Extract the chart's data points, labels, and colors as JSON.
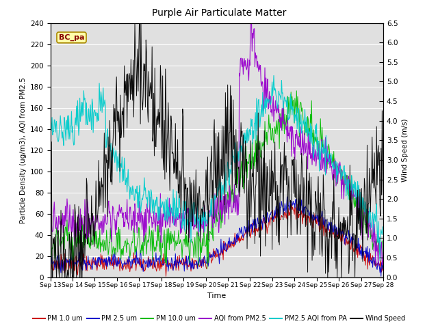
{
  "title": "Purple Air Particulate Matter",
  "xlabel": "Time",
  "ylabel_left": "Particle Density (ug/m3), AQI from PM2.5",
  "ylabel_right": "Wind Speed (m/s)",
  "annotation": "BC_pa",
  "ylim_left": [
    0,
    240
  ],
  "ylim_right": [
    0.0,
    6.5
  ],
  "yticks_left": [
    0,
    20,
    40,
    60,
    80,
    100,
    120,
    140,
    160,
    180,
    200,
    220,
    240
  ],
  "yticks_right": [
    0.0,
    0.5,
    1.0,
    1.5,
    2.0,
    2.5,
    3.0,
    3.5,
    4.0,
    4.5,
    5.0,
    5.5,
    6.0,
    6.5
  ],
  "xtick_labels": [
    "Sep 13",
    "Sep 14",
    "Sep 15",
    "Sep 16",
    "Sep 17",
    "Sep 18",
    "Sep 19",
    "Sep 20",
    "Sep 21",
    "Sep 22",
    "Sep 23",
    "Sep 24",
    "Sep 25",
    "Sep 26",
    "Sep 27",
    "Sep 28"
  ],
  "n_points": 600,
  "colors": {
    "pm1": "#cc0000",
    "pm25": "#0000cc",
    "pm10": "#00bb00",
    "aqi_pm25": "#9900cc",
    "aqi_pa": "#00cccc",
    "wind": "#000000"
  },
  "legend_labels": [
    "PM 1.0 um",
    "PM 2.5 um",
    "PM 10.0 um",
    "AQI from PM2.5",
    "PM2.5 AQI from PA",
    "Wind Speed"
  ],
  "plot_bg_color": "#e0e0e0",
  "grid_color": "#ffffff",
  "fig_bg": "#ffffff"
}
